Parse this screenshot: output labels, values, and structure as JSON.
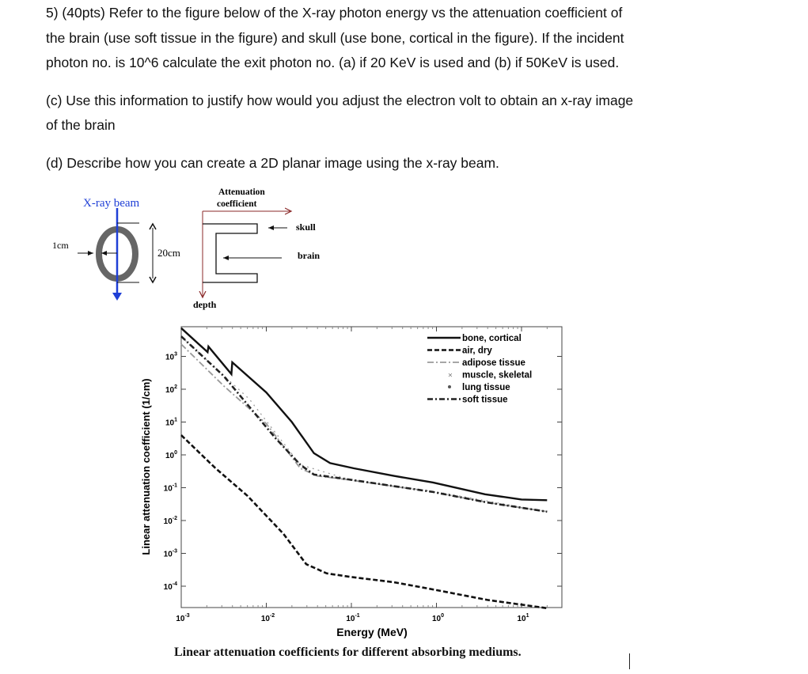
{
  "question": {
    "line1": "5) (40pts) Refer to the figure below of the X-ray photon energy vs the attenuation coefficient of",
    "line2": "the brain (use soft tissue in the figure) and skull (use bone, cortical in the figure). If the incident",
    "line3": "photon no. is 10^6 calculate the exit photon no. (a) if 20 KeV is used and (b) if 50KeV is used.",
    "part_c_line1": "(c) Use this information to justify how would you adjust the electron volt to obtain an x-ray image",
    "part_c_line2": "of the brain",
    "part_d": "(d) Describe how you can create a 2D planar image using the x-ray beam."
  },
  "diagram": {
    "beam_label": "X-ray beam",
    "thickness_label": "1cm",
    "diameter_label": "20cm",
    "axis_x_label_1": "Attenuation",
    "axis_x_label_2": "coefficient",
    "axis_y_label": "depth",
    "skull_label": "skull",
    "brain_label": "brain",
    "beam_color": "#1f3fd6",
    "axis_color": "#8b2a2a"
  },
  "chart_data": {
    "type": "line",
    "xscale": "log",
    "yscale": "log",
    "xlabel": "Energy (MeV)",
    "ylabel": "Linear attenuation coefficient (1/cm)",
    "xlim": [
      0.001,
      20
    ],
    "ylim": [
      2e-05,
      8000
    ],
    "x_ticks": [
      {
        "exp": "-3"
      },
      {
        "exp": "-2"
      },
      {
        "exp": "-1"
      },
      {
        "exp": "0"
      },
      {
        "exp": "1"
      }
    ],
    "y_ticks": [
      {
        "exp": "3"
      },
      {
        "exp": "2"
      },
      {
        "exp": "1"
      },
      {
        "exp": "0"
      },
      {
        "exp": "-1"
      },
      {
        "exp": "-2"
      },
      {
        "exp": "-3"
      },
      {
        "exp": "-4"
      }
    ],
    "legend_position": "top-right",
    "series": [
      {
        "name": "bone, cortical",
        "style": "solid",
        "log_points": [
          [
            -3,
            3.86
          ],
          [
            -2.69,
            3.13
          ],
          [
            -2.68,
            3.3
          ],
          [
            -2.41,
            2.46
          ],
          [
            -2.4,
            2.82
          ],
          [
            -2,
            1.9
          ],
          [
            -1.7,
            1.0
          ],
          [
            -1.44,
            0.05
          ],
          [
            -1.25,
            -0.25
          ],
          [
            -0.97,
            -0.41
          ],
          [
            -0.5,
            -0.64
          ],
          [
            -0.04,
            -0.84
          ],
          [
            0.57,
            -1.2
          ],
          [
            1.0,
            -1.36
          ],
          [
            1.3,
            -1.38
          ]
        ]
      },
      {
        "name": "air, dry",
        "style": "dashed",
        "log_points": [
          [
            -3,
            0.6
          ],
          [
            -2.6,
            -0.4
          ],
          [
            -2.22,
            -1.25
          ],
          [
            -1.8,
            -2.4
          ],
          [
            -1.53,
            -3.33
          ],
          [
            -1.29,
            -3.61
          ],
          [
            -1.0,
            -3.72
          ],
          [
            -0.5,
            -3.88
          ],
          [
            -0.04,
            -4.1
          ],
          [
            0.6,
            -4.42
          ],
          [
            1.3,
            -4.67
          ]
        ]
      },
      {
        "name": "adipose tissue",
        "style": "dashdot-gray",
        "log_points": [
          [
            -3,
            3.37
          ],
          [
            -2.5,
            2.1
          ],
          [
            -2,
            0.95
          ],
          [
            -1.6,
            -0.41
          ],
          [
            -1.4,
            -0.64
          ],
          [
            -1,
            -0.77
          ],
          [
            -0.04,
            -1.13
          ],
          [
            0.6,
            -1.45
          ],
          [
            1.3,
            -1.73
          ]
        ]
      },
      {
        "name": "muscle, skeletal",
        "style": "cross",
        "log_points": [
          [
            -3,
            3.6
          ],
          [
            -2.2,
            1.7
          ],
          [
            -1.6,
            -0.3
          ],
          [
            -1,
            -0.77
          ],
          [
            0,
            -1.13
          ],
          [
            1.3,
            -1.73
          ]
        ]
      },
      {
        "name": "lung tissue",
        "style": "dot",
        "log_points": [
          [
            -3,
            3.6
          ],
          [
            -2.2,
            1.7
          ],
          [
            -1.6,
            -0.3
          ],
          [
            -1,
            -0.77
          ],
          [
            0,
            -1.13
          ],
          [
            1.3,
            -1.73
          ]
        ]
      },
      {
        "name": "soft tissue",
        "style": "dashdot",
        "log_points": [
          [
            -3,
            3.61
          ],
          [
            -2.5,
            2.4
          ],
          [
            -1.9,
            0.53
          ],
          [
            -1.6,
            -0.3
          ],
          [
            -1.44,
            -0.6
          ],
          [
            -0.97,
            -0.77
          ],
          [
            -0.04,
            -1.13
          ],
          [
            0.6,
            -1.45
          ],
          [
            1.3,
            -1.73
          ]
        ]
      }
    ]
  },
  "caption": "Linear attenuation coefficients for different absorbing mediums."
}
